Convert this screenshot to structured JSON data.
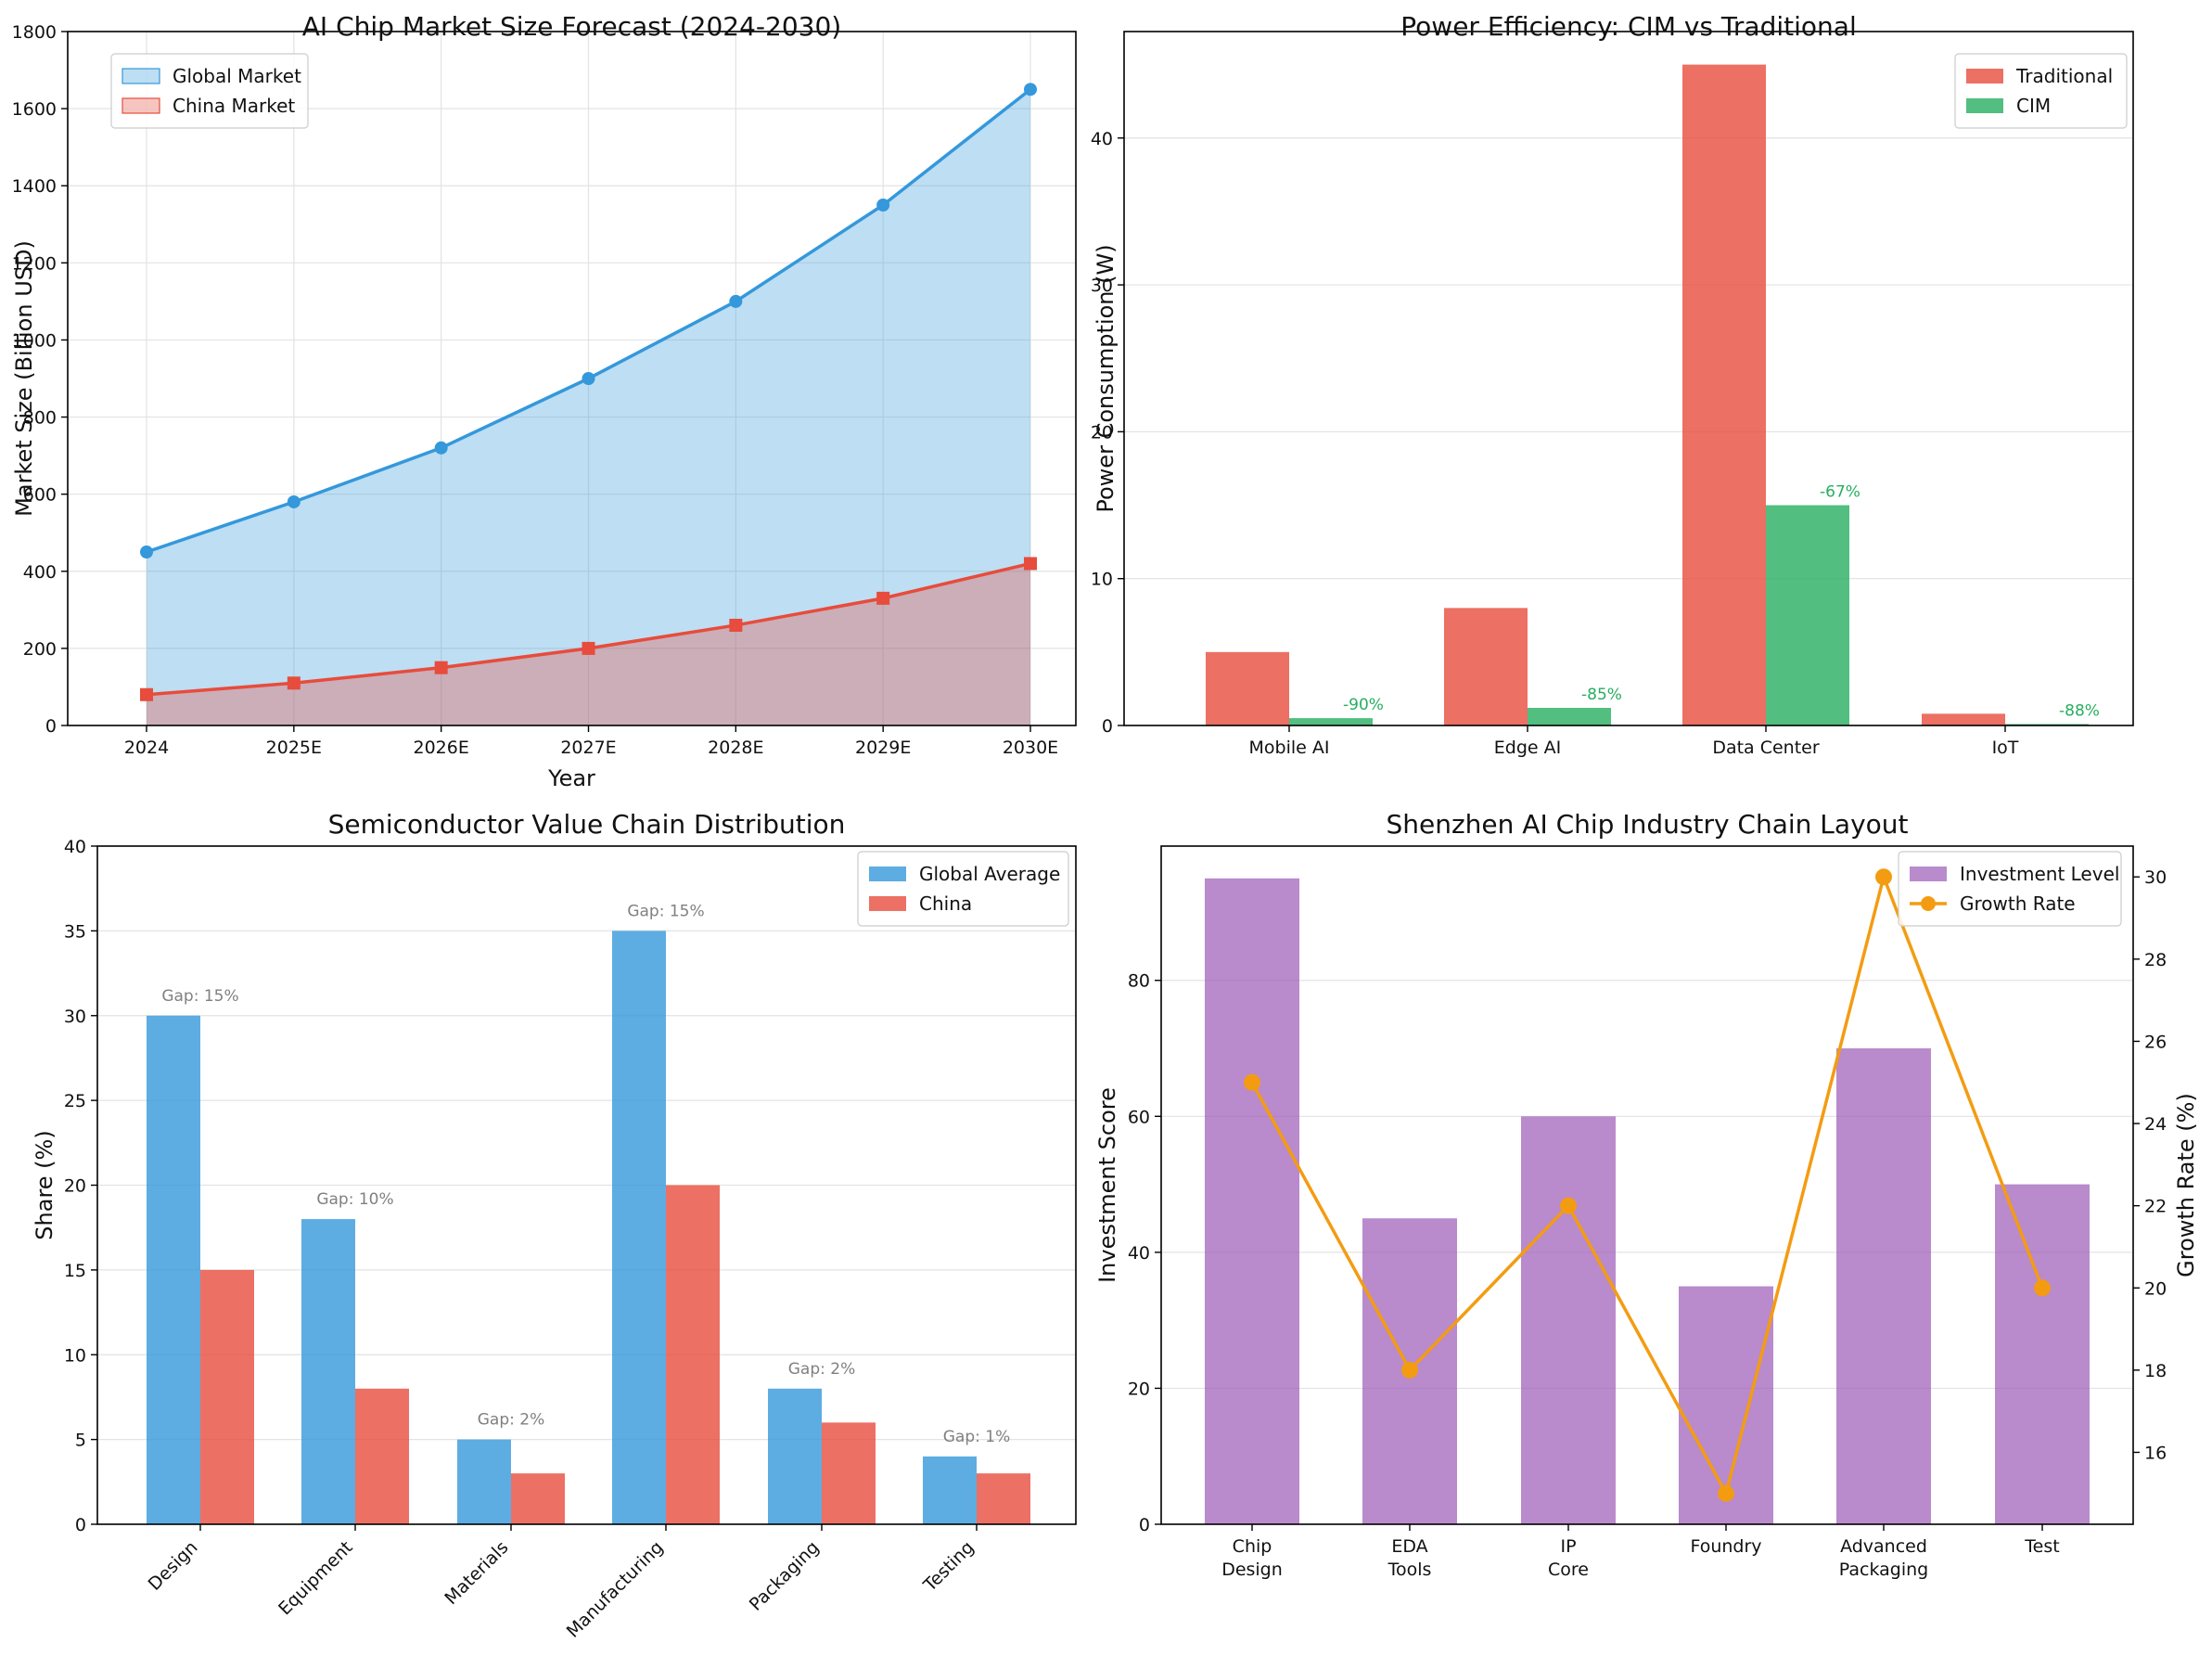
{
  "chart_data": [
    {
      "type": "area",
      "title": "AI Chip Market Size Forecast (2024-2030)",
      "xlabel": "Year",
      "ylabel": "Market Size (Billion USD)",
      "categories": [
        "2024",
        "2025E",
        "2026E",
        "2027E",
        "2028E",
        "2029E",
        "2030E"
      ],
      "series": [
        {
          "name": "Global Market",
          "values": [
            450,
            580,
            720,
            900,
            1100,
            1350,
            1650
          ],
          "color": "#3498db",
          "marker": "circle"
        },
        {
          "name": "China Market",
          "values": [
            80,
            110,
            150,
            200,
            260,
            330,
            420
          ],
          "color": "#e74c3c",
          "marker": "square"
        }
      ],
      "ylim": [
        0,
        1800
      ],
      "yticks": [
        0,
        200,
        400,
        600,
        800,
        1000,
        1200,
        1400,
        1600,
        1800
      ],
      "grid": true,
      "legend": "top-left"
    },
    {
      "type": "bar",
      "title": "Power Efficiency: CIM vs Traditional",
      "xlabel": "",
      "ylabel": "Power Consumption (W)",
      "categories": [
        "Mobile AI",
        "Edge AI",
        "Data Center",
        "IoT"
      ],
      "series": [
        {
          "name": "Traditional",
          "values": [
            5,
            8,
            45,
            0.8
          ],
          "color": "#e74c3c"
        },
        {
          "name": "CIM",
          "values": [
            0.5,
            1.2,
            15,
            0.1
          ],
          "color": "#27ae60"
        }
      ],
      "annotations": [
        "-90%",
        "-85%",
        "-67%",
        "-88%"
      ],
      "annotation_color": "#27ae60",
      "ylim": [
        0,
        47.25
      ],
      "yticks": [
        0,
        10,
        20,
        30,
        40
      ],
      "grid": true,
      "legend": "top-right"
    },
    {
      "type": "bar",
      "title": "Semiconductor Value Chain Distribution",
      "xlabel": "",
      "ylabel": "Share (%)",
      "categories": [
        "Design",
        "Equipment",
        "Materials",
        "Manufacturing",
        "Packaging",
        "Testing"
      ],
      "series": [
        {
          "name": "Global Average",
          "values": [
            30,
            18,
            5,
            35,
            8,
            4
          ],
          "color": "#3498db"
        },
        {
          "name": "China",
          "values": [
            15,
            8,
            3,
            20,
            6,
            3
          ],
          "color": "#e74c3c"
        }
      ],
      "annotations": [
        "Gap: 15%",
        "Gap: 10%",
        "Gap: 2%",
        "Gap: 15%",
        "Gap: 2%",
        "Gap: 1%"
      ],
      "annotation_color": "#808080",
      "ylim": [
        0,
        40
      ],
      "yticks": [
        0,
        5,
        10,
        15,
        20,
        25,
        30,
        35,
        40
      ],
      "grid": true,
      "legend": "top-right"
    },
    {
      "type": "bar",
      "title": "Shenzhen AI Chip Industry Chain Layout",
      "xlabel": "",
      "ylabel": "Investment Score",
      "ylabel_right": "Growth Rate (%)",
      "categories": [
        [
          "Chip",
          "Design"
        ],
        [
          "EDA",
          "Tools"
        ],
        [
          "IP",
          "Core"
        ],
        [
          "Foundry"
        ],
        [
          "Advanced",
          "Packaging"
        ],
        [
          "Test"
        ]
      ],
      "series": [
        {
          "name": "Investment Level",
          "values": [
            95,
            45,
            60,
            35,
            70,
            50
          ],
          "color": "#9b59b6",
          "axis": "left"
        },
        {
          "name": "Growth Rate",
          "values": [
            25,
            18,
            22,
            15,
            30,
            20
          ],
          "color": "#f39c12",
          "axis": "right",
          "type": "line"
        }
      ],
      "ylim": [
        0,
        99.75
      ],
      "yticks": [
        0,
        20,
        40,
        60,
        80
      ],
      "ylim_right": [
        14.25,
        30.75
      ],
      "yticks_right": [
        16,
        18,
        20,
        22,
        24,
        26,
        28,
        30
      ],
      "grid": true,
      "legend": "top-right"
    }
  ]
}
